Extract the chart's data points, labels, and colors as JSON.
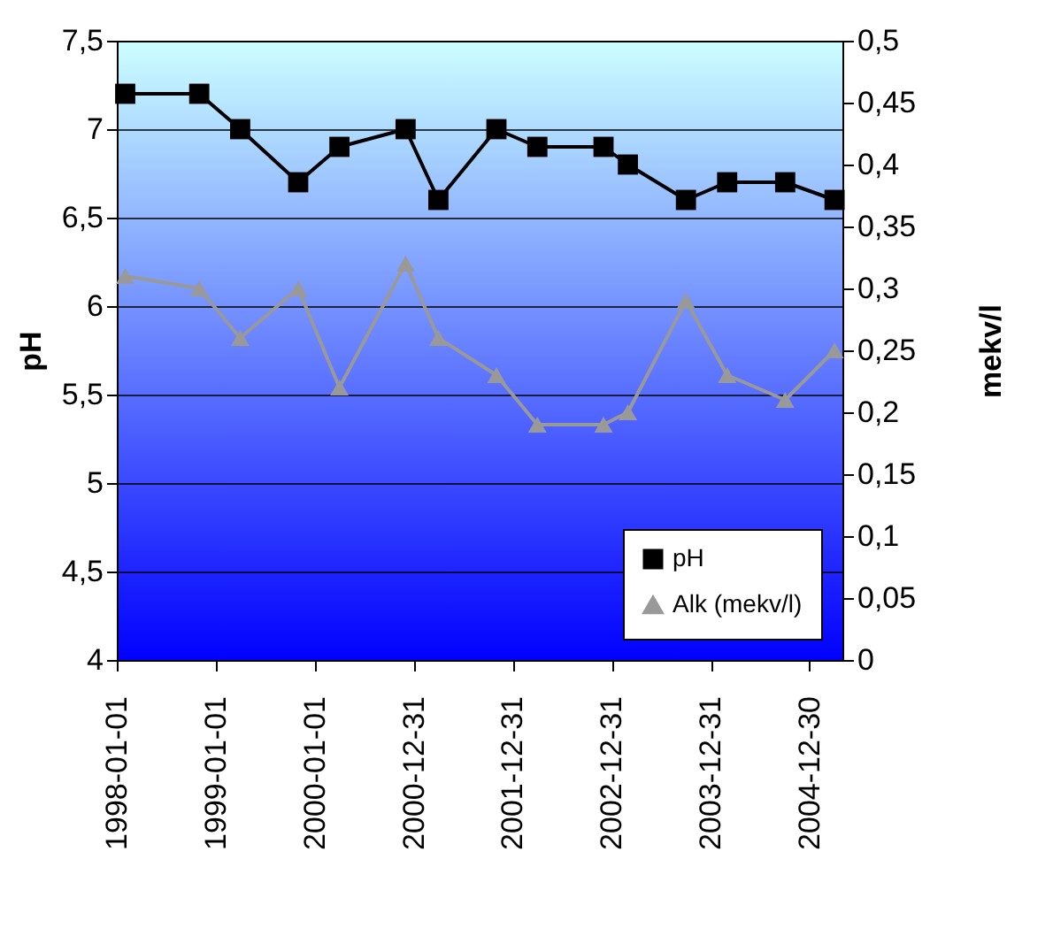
{
  "chart_data": {
    "type": "line",
    "ylabel": "pH",
    "y2label": "mekv/l",
    "x": [
      "1998-02",
      "1998-11",
      "1999-04",
      "1999-11",
      "2000-04",
      "2000-12",
      "2001-04",
      "2001-11",
      "2002-04",
      "2002-12",
      "2003-03",
      "2003-10",
      "2004-03",
      "2004-10",
      "2005-04"
    ],
    "series": [
      {
        "name": "pH",
        "color": "#000000",
        "marker": "square",
        "values": [
          7.2,
          7.2,
          7.0,
          6.7,
          6.9,
          7.0,
          6.6,
          7.0,
          6.9,
          6.9,
          6.8,
          6.6,
          6.7,
          6.7,
          6.6
        ]
      },
      {
        "name": "Alk (mekv/l)",
        "color": "#999999",
        "marker": "triangle",
        "axis": "y2",
        "values": [
          0.31,
          0.3,
          0.26,
          0.3,
          0.22,
          0.32,
          0.26,
          0.23,
          0.19,
          0.19,
          0.2,
          0.29,
          0.23,
          0.21,
          0.25
        ]
      }
    ],
    "xlim": [
      "1998-01-01",
      "2005-04-30"
    ],
    "xticks": [
      "1998-01-01",
      "1999-01-01",
      "2000-01-01",
      "2000-12-31",
      "2001-12-31",
      "2002-12-31",
      "2003-12-31",
      "2004-12-30"
    ],
    "ylim": [
      4,
      7.5
    ],
    "yticks": [
      {
        "value": 4,
        "label": "4"
      },
      {
        "value": 4.5,
        "label": "4,5"
      },
      {
        "value": 5,
        "label": "5"
      },
      {
        "value": 5.5,
        "label": "5,5"
      },
      {
        "value": 6,
        "label": "6"
      },
      {
        "value": 6.5,
        "label": "6,5"
      },
      {
        "value": 7,
        "label": "7"
      },
      {
        "value": 7.5,
        "label": "7,5"
      }
    ],
    "y2lim": [
      0,
      0.5
    ],
    "y2ticks": [
      {
        "value": 0,
        "label": "0"
      },
      {
        "value": 0.05,
        "label": "0,05"
      },
      {
        "value": 0.1,
        "label": "0,1"
      },
      {
        "value": 0.15,
        "label": "0,15"
      },
      {
        "value": 0.2,
        "label": "0,2"
      },
      {
        "value": 0.25,
        "label": "0,25"
      },
      {
        "value": 0.3,
        "label": "0,3"
      },
      {
        "value": 0.35,
        "label": "0,35"
      },
      {
        "value": 0.4,
        "label": "0,4"
      },
      {
        "value": 0.45,
        "label": "0,45"
      },
      {
        "value": 0.5,
        "label": "0,5"
      }
    ],
    "grid": "y",
    "legend": "bottom right",
    "line_style": "solid"
  }
}
